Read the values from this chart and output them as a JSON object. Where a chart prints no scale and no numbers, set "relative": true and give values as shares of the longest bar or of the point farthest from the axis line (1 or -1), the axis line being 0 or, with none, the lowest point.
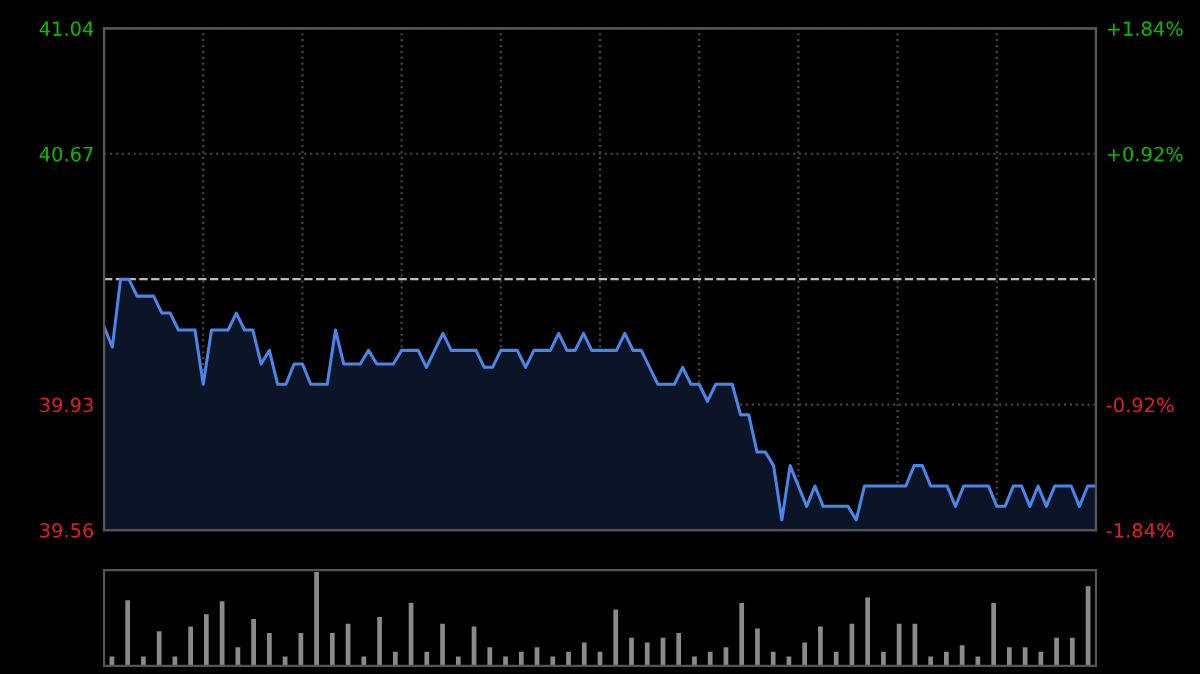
{
  "chart_data": [
    {
      "type": "area",
      "categories": [
        null,
        null,
        null,
        null,
        null,
        null,
        null,
        null,
        null,
        null,
        null,
        null,
        null,
        null,
        null,
        null,
        null,
        null,
        null,
        null,
        null,
        null,
        null,
        null,
        null,
        null,
        null,
        null,
        null,
        null,
        null,
        null,
        null,
        null,
        null,
        null,
        null,
        null,
        null,
        null,
        null,
        null,
        null,
        null,
        null,
        null,
        null,
        null,
        null,
        null,
        null,
        null,
        null,
        null,
        null,
        null,
        null,
        null,
        null,
        null,
        null,
        null,
        null,
        null,
        null,
        null,
        null,
        null,
        null,
        null,
        null,
        null,
        null,
        null,
        null,
        null,
        null,
        null,
        null,
        null,
        null,
        null,
        null,
        null,
        null,
        null,
        null,
        null,
        null,
        null,
        null,
        null,
        null,
        null,
        null,
        null,
        null,
        null,
        null,
        null,
        null,
        null,
        null,
        null,
        null,
        null,
        null,
        null,
        null,
        null,
        null,
        null,
        null,
        null,
        null,
        null,
        null,
        null,
        null,
        null,
        null
      ],
      "series": [
        {
          "color": "#4a86e8",
          "values": [
            40.16,
            40.1,
            40.3,
            40.3,
            40.25,
            40.25,
            40.25,
            40.2,
            40.2,
            40.15,
            40.15,
            40.15,
            39.99,
            40.15,
            40.15,
            40.15,
            40.2,
            40.15,
            40.15,
            40.05,
            40.09,
            39.99,
            39.99,
            40.05,
            40.05,
            39.99,
            39.99,
            39.99,
            40.15,
            40.05,
            40.05,
            40.05,
            40.09,
            40.05,
            40.05,
            40.05,
            40.09,
            40.09,
            40.09,
            40.04,
            40.09,
            40.14,
            40.09,
            40.09,
            40.09,
            40.09,
            40.04,
            40.04,
            40.09,
            40.09,
            40.09,
            40.04,
            40.09,
            40.09,
            40.09,
            40.14,
            40.09,
            40.09,
            40.14,
            40.09,
            40.09,
            40.09,
            40.09,
            40.14,
            40.09,
            40.09,
            40.04,
            39.99,
            39.99,
            39.99,
            40.04,
            39.99,
            39.99,
            39.94,
            39.99,
            39.99,
            39.99,
            39.9,
            39.9,
            39.79,
            39.79,
            39.75,
            39.59,
            39.75,
            39.69,
            39.63,
            39.69,
            39.63,
            39.63,
            39.63,
            39.63,
            39.59,
            39.69,
            39.69,
            39.69,
            39.69,
            39.69,
            39.69,
            39.75,
            39.75,
            39.69,
            39.69,
            39.69,
            39.63,
            39.69,
            39.69,
            39.69,
            39.69,
            39.63,
            39.63,
            39.69,
            39.69,
            39.63,
            39.69,
            39.63,
            39.69,
            39.69,
            39.69,
            39.63,
            39.69,
            39.69
          ]
        }
      ],
      "ylim": [
        39.56,
        41.04
      ],
      "yticks": [
        39.56,
        39.93,
        {
          "value": 40.3,
          "label": null
        },
        40.67,
        41.04
      ],
      "y2lim": [
        -1.84,
        1.84
      ],
      "y2ticks": [
        {
          "value": -1.84,
          "label": "-1.84%"
        },
        {
          "value": -0.92,
          "label": "-0.92%"
        },
        {
          "value": 0.92,
          "label": "+0.92%"
        },
        {
          "value": 1.84,
          "label": "+1.84%"
        }
      ],
      "ref_lines": [
        {
          "axis": "y",
          "value": 40.3,
          "line_style": "dashed",
          "color": "#bbbbbb"
        }
      ],
      "grid": true
    },
    {
      "type": "bar",
      "relative": true,
      "color": "#8a8a8a",
      "categories": [
        null,
        null,
        null,
        null,
        null,
        null,
        null,
        null,
        null,
        null,
        null,
        null,
        null,
        null,
        null,
        null,
        null,
        null,
        null,
        null,
        null,
        null,
        null,
        null,
        null,
        null,
        null,
        null,
        null,
        null,
        null,
        null,
        null,
        null,
        null,
        null,
        null,
        null,
        null,
        null,
        null,
        null,
        null,
        null,
        null,
        null,
        null,
        null,
        null,
        null,
        null,
        null,
        null,
        null,
        null,
        null,
        null,
        null,
        null,
        null,
        null,
        null,
        null
      ],
      "values": [
        0.1,
        0.7,
        0.1,
        0.37,
        0.1,
        0.42,
        0.55,
        0.69,
        0.2,
        0.5,
        0.35,
        0.1,
        0.35,
        1.0,
        0.35,
        0.45,
        0.1,
        0.52,
        0.15,
        0.67,
        0.15,
        0.45,
        0.1,
        0.42,
        0.2,
        0.1,
        0.15,
        0.2,
        0.1,
        0.15,
        0.25,
        0.15,
        0.6,
        0.3,
        0.25,
        0.3,
        0.35,
        0.1,
        0.15,
        0.2,
        0.67,
        0.4,
        0.15,
        0.1,
        0.25,
        0.42,
        0.15,
        0.45,
        0.73,
        0.15,
        0.45,
        0.45,
        0.1,
        0.15,
        0.22,
        0.1,
        0.67,
        0.2,
        0.2,
        0.15,
        0.3,
        0.3,
        0.85
      ]
    }
  ]
}
